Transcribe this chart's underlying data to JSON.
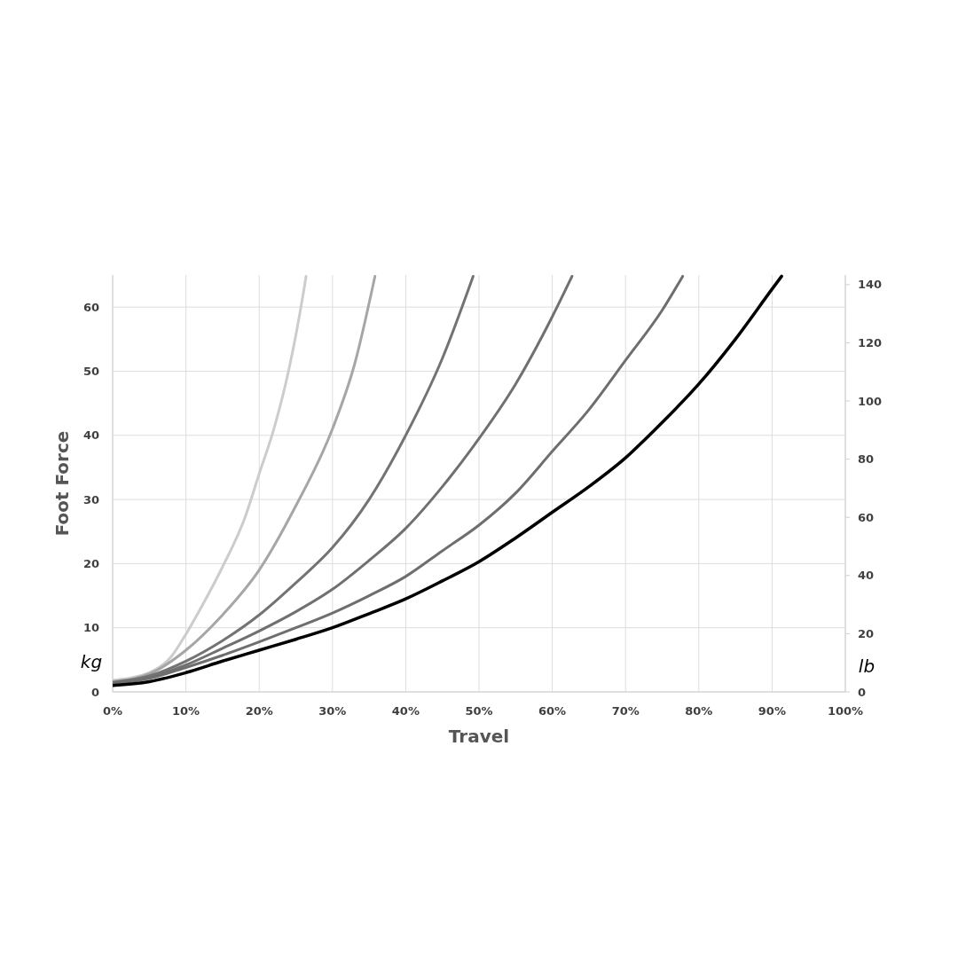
{
  "chart_data": {
    "type": "line",
    "xlabel": "Travel",
    "ylabel": "Foot Force",
    "y2label": "lb",
    "annotations": [
      "kg"
    ],
    "xlim": [
      0,
      100
    ],
    "xticks": [
      {
        "value": 0,
        "label": "0%"
      },
      {
        "value": 10,
        "label": "10%"
      },
      {
        "value": 20,
        "label": "20%"
      },
      {
        "value": 30,
        "label": "30%"
      },
      {
        "value": 40,
        "label": "40%"
      },
      {
        "value": 50,
        "label": "50%"
      },
      {
        "value": 60,
        "label": "60%"
      },
      {
        "value": 70,
        "label": "70%"
      },
      {
        "value": 80,
        "label": "80%"
      },
      {
        "value": 90,
        "label": "90%"
      },
      {
        "value": 100,
        "label": "100%"
      }
    ],
    "ylim": [
      0,
      65
    ],
    "yticks": [
      0,
      10,
      20,
      30,
      40,
      50,
      60
    ],
    "y2lim": [
      0,
      143.3
    ],
    "y2ticks": [
      0,
      20,
      40,
      60,
      80,
      100,
      120,
      140
    ],
    "grid": true,
    "marker": "none",
    "line_style": "solid",
    "series": [
      {
        "color": "#cccccc",
        "x": [
          0,
          5,
          8,
          10,
          12,
          15,
          18,
          20,
          22,
          24,
          26,
          26.4
        ],
        "values": [
          1.8,
          3,
          5.5,
          9,
          13,
          19.5,
          27,
          34,
          41,
          50,
          62,
          64.8
        ]
      },
      {
        "color": "#a6a6a6",
        "x": [
          0,
          5,
          10,
          15,
          20,
          25,
          30,
          33,
          35.8
        ],
        "values": [
          1.6,
          2.8,
          6.5,
          12,
          19,
          29,
          41,
          51,
          64.8
        ]
      },
      {
        "color": "#737373",
        "x": [
          0,
          5,
          10,
          15,
          20,
          25,
          30,
          35,
          40,
          45,
          49.2
        ],
        "values": [
          1.5,
          2.5,
          4.8,
          8,
          12,
          17,
          22.5,
          30,
          40,
          52,
          64.8
        ]
      },
      {
        "color": "#707070",
        "x": [
          0,
          5,
          10,
          15,
          20,
          25,
          30,
          35,
          40,
          45,
          50,
          55,
          60,
          62.7
        ],
        "values": [
          1.4,
          2.3,
          4.2,
          6.8,
          9.5,
          12.5,
          16,
          20.5,
          25.5,
          32,
          39.5,
          48,
          58.5,
          64.8
        ]
      },
      {
        "color": "#6e6e6e",
        "x": [
          0,
          5,
          10,
          15,
          20,
          25,
          30,
          35,
          40,
          45,
          50,
          55,
          60,
          65,
          70,
          75,
          77.8
        ],
        "values": [
          1.3,
          2.1,
          3.8,
          5.7,
          7.8,
          10,
          12.3,
          15,
          18,
          22,
          26,
          31,
          37.5,
          44,
          51.7,
          59.5,
          64.8
        ]
      },
      {
        "color": "#000000",
        "x": [
          0,
          5,
          10,
          15,
          20,
          25,
          30,
          35,
          40,
          45,
          50,
          55,
          60,
          65,
          70,
          75,
          80,
          85,
          90,
          91.3
        ],
        "values": [
          1,
          1.6,
          3,
          4.8,
          6.5,
          8.2,
          10,
          12.2,
          14.5,
          17.3,
          20.3,
          24,
          28,
          32,
          36.5,
          42,
          48,
          55,
          62.8,
          64.8
        ]
      }
    ]
  }
}
